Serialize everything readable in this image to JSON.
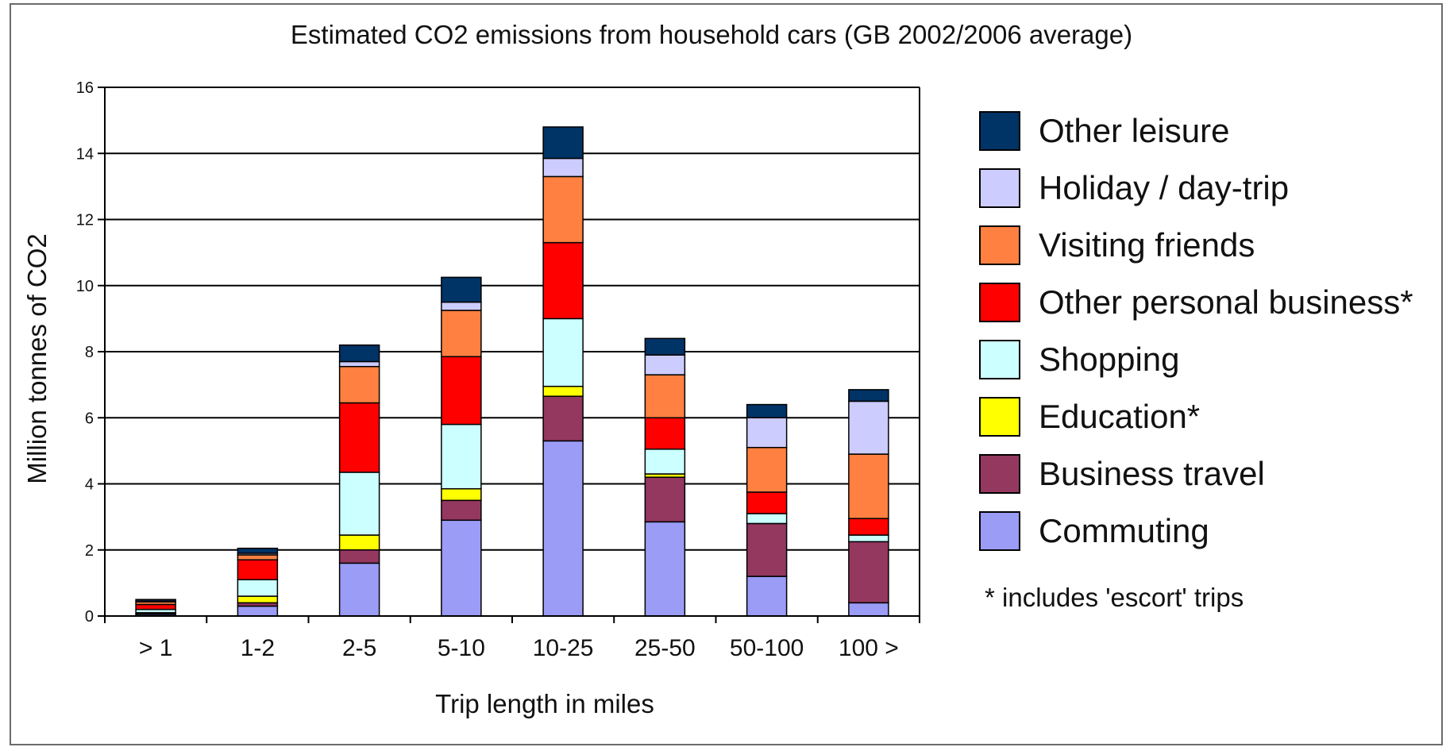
{
  "chart_data": {
    "type": "bar",
    "stacked": true,
    "title": "Estimated CO2 emissions from household cars (GB 2002/2006 average)",
    "xlabel": "Trip length in miles",
    "ylabel": "Million tonnes of CO2",
    "ylim": [
      0,
      16
    ],
    "yticks": [
      0,
      2,
      4,
      6,
      8,
      10,
      12,
      14,
      16
    ],
    "grid": true,
    "legend_position": "right",
    "categories": [
      "> 1",
      "1-2",
      "2-5",
      "5-10",
      "10-25",
      "25-50",
      "50-100",
      "100 >"
    ],
    "series": [
      {
        "name": "Commuting",
        "color": "#9a9cf6",
        "values": [
          0.05,
          0.3,
          1.6,
          2.9,
          5.3,
          2.85,
          1.2,
          0.4
        ]
      },
      {
        "name": "Business travel",
        "color": "#943860",
        "values": [
          0.02,
          0.1,
          0.4,
          0.6,
          1.35,
          1.35,
          1.6,
          1.85
        ]
      },
      {
        "name": "Education*",
        "color": "#ffff00",
        "values": [
          0.03,
          0.2,
          0.45,
          0.35,
          0.3,
          0.1,
          0.0,
          0.0
        ]
      },
      {
        "name": "Shopping",
        "color": "#ccffff",
        "values": [
          0.1,
          0.5,
          1.9,
          1.95,
          2.05,
          0.75,
          0.3,
          0.2
        ]
      },
      {
        "name": "Other personal business*",
        "color": "#ff0000",
        "values": [
          0.15,
          0.6,
          2.1,
          2.05,
          2.3,
          0.95,
          0.65,
          0.5
        ]
      },
      {
        "name": "Visiting friends",
        "color": "#ff8040",
        "values": [
          0.08,
          0.15,
          1.1,
          1.4,
          2.0,
          1.3,
          1.35,
          1.95
        ]
      },
      {
        "name": "Holiday / day-trip",
        "color": "#ccccff",
        "values": [
          0.02,
          0.05,
          0.15,
          0.25,
          0.55,
          0.6,
          0.9,
          1.6
        ]
      },
      {
        "name": "Other leisure",
        "color": "#003366",
        "values": [
          0.05,
          0.15,
          0.5,
          0.75,
          0.95,
          0.5,
          0.4,
          0.35
        ]
      }
    ],
    "legend_order": [
      "Other leisure",
      "Holiday / day-trip",
      "Visiting friends",
      "Other personal business*",
      "Shopping",
      "Education*",
      "Business travel",
      "Commuting"
    ],
    "footnote": "* includes 'escort' trips"
  }
}
